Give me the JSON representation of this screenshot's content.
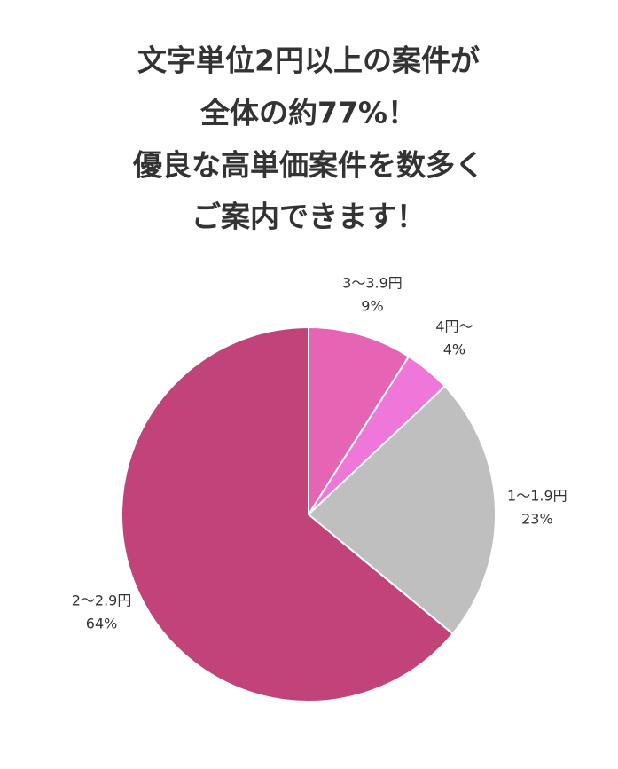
{
  "chart_data": {
    "type": "pie",
    "title": [
      "文字単位2円以上の案件が",
      "全体の約77%！",
      "優良な高単価案件を数多く",
      "ご案内できます！"
    ],
    "categories": [
      "3〜3.9円",
      "4円〜",
      "1〜1.9円",
      "2〜2.9円"
    ],
    "values": [
      9,
      4,
      23,
      64
    ],
    "value_labels": [
      "9%",
      "4%",
      "23%",
      "64%"
    ],
    "colors": [
      "#e564b4",
      "#ee77d9",
      "#bfbfbf",
      "#c2437a"
    ]
  }
}
